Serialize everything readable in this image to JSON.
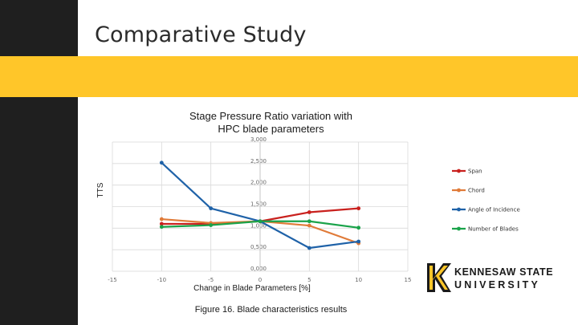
{
  "slide": {
    "title": "Comparative Study",
    "caption": "Figure 16. Blade characteristics results"
  },
  "logo": {
    "line1": "KENNESAW STATE",
    "line2": "UNIVERSITY"
  },
  "colors": {
    "left_bar": "#1f1f1f",
    "gold_band": "#ffc629",
    "span": "#c9211e",
    "chord": "#e07b39",
    "angle": "#1f62a8",
    "blades": "#1aa34a",
    "logo_gold": "#ffc629"
  },
  "chart_data": {
    "type": "line",
    "title_lines": [
      "Stage Pressure Ratio variation with",
      "HPC blade parameters"
    ],
    "xlabel": "Change in Blade Parameters [%]",
    "ylabel": "TTS",
    "xlim": [
      -15,
      15
    ],
    "ylim": [
      0,
      3
    ],
    "x_ticks": [
      "-15",
      "-10",
      "-5",
      "0",
      "5",
      "10",
      "15"
    ],
    "y_ticks": [
      "0,000",
      "0,500",
      "1,000",
      "1,500",
      "2,000",
      "2,500",
      "3,000"
    ],
    "grid": true,
    "legend_position": "right",
    "x": [
      -10,
      -5,
      0,
      5,
      10
    ],
    "series": [
      {
        "name": "Span",
        "color": "#c9211e",
        "values": [
          1.1,
          1.1,
          1.16,
          1.37,
          1.46
        ]
      },
      {
        "name": "Chord",
        "color": "#e07b39",
        "values": [
          1.21,
          1.12,
          1.16,
          1.06,
          0.65
        ]
      },
      {
        "name": "Angle of Incidence",
        "color": "#1f62a8",
        "values": [
          2.52,
          1.46,
          1.16,
          0.54,
          0.69
        ]
      },
      {
        "name": "Number of Blades",
        "color": "#1aa34a",
        "values": [
          1.03,
          1.07,
          1.16,
          1.16,
          1.01
        ]
      }
    ]
  }
}
